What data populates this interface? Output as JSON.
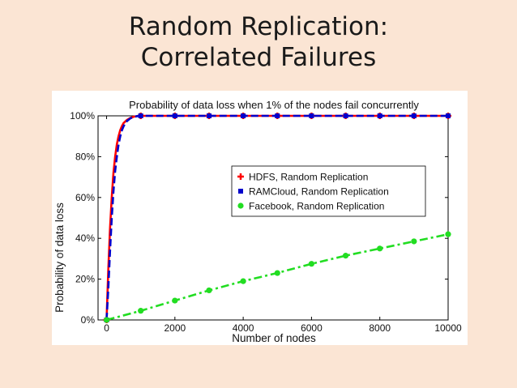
{
  "slide": {
    "title_line1": "Random Replication:",
    "title_line2": "Correlated Failures"
  },
  "chart_data": {
    "type": "line",
    "title": "Probability of data loss when 1% of the nodes fail concurrently",
    "xlabel": "Number of nodes",
    "ylabel": "Probability of data loss",
    "xlim": [
      -250,
      10000
    ],
    "ylim": [
      0,
      100
    ],
    "xticks": [
      0,
      2000,
      4000,
      6000,
      8000,
      10000
    ],
    "yticks": [
      0,
      20,
      40,
      60,
      80,
      100
    ],
    "ytick_labels": [
      "0%",
      "20%",
      "40%",
      "60%",
      "80%",
      "100%"
    ],
    "grid": false,
    "legend_position": "center-right",
    "series": [
      {
        "name": "HDFS, Random Replication",
        "color": "#ff0000",
        "line_style": "solid",
        "marker": "plus",
        "x": [
          0,
          50,
          100,
          150,
          200,
          250,
          300,
          350,
          400,
          450,
          500,
          600,
          700,
          800,
          900,
          1000,
          2000,
          3000,
          4000,
          5000,
          6000,
          7000,
          8000,
          9000,
          10000
        ],
        "y": [
          0,
          24,
          45,
          60,
          72,
          80,
          86,
          90,
          93,
          95,
          96.5,
          98,
          99,
          99.6,
          99.9,
          100,
          100,
          100,
          100,
          100,
          100,
          100,
          100,
          100,
          100
        ]
      },
      {
        "name": "RAMCloud, Random Replication",
        "color": "#0000cc",
        "line_style": "dashed",
        "marker": "square",
        "x": [
          0,
          50,
          100,
          150,
          200,
          250,
          300,
          350,
          400,
          450,
          500,
          600,
          700,
          800,
          900,
          1000,
          2000,
          3000,
          4000,
          5000,
          6000,
          7000,
          8000,
          9000,
          10000
        ],
        "y": [
          0,
          15,
          34,
          50,
          63,
          73,
          80,
          86,
          90,
          93,
          95,
          97.5,
          98.8,
          99.5,
          99.9,
          100,
          100,
          100,
          100,
          100,
          100,
          100,
          100,
          100,
          100
        ]
      },
      {
        "name": "Facebook, Random Replication",
        "color": "#22dd22",
        "line_style": "dashdot",
        "marker": "circle",
        "x": [
          0,
          1000,
          2000,
          3000,
          4000,
          5000,
          6000,
          7000,
          8000,
          9000,
          10000
        ],
        "y": [
          0,
          4.5,
          9.5,
          14.5,
          19,
          23,
          27.5,
          31.5,
          35,
          38.5,
          42
        ]
      }
    ]
  }
}
